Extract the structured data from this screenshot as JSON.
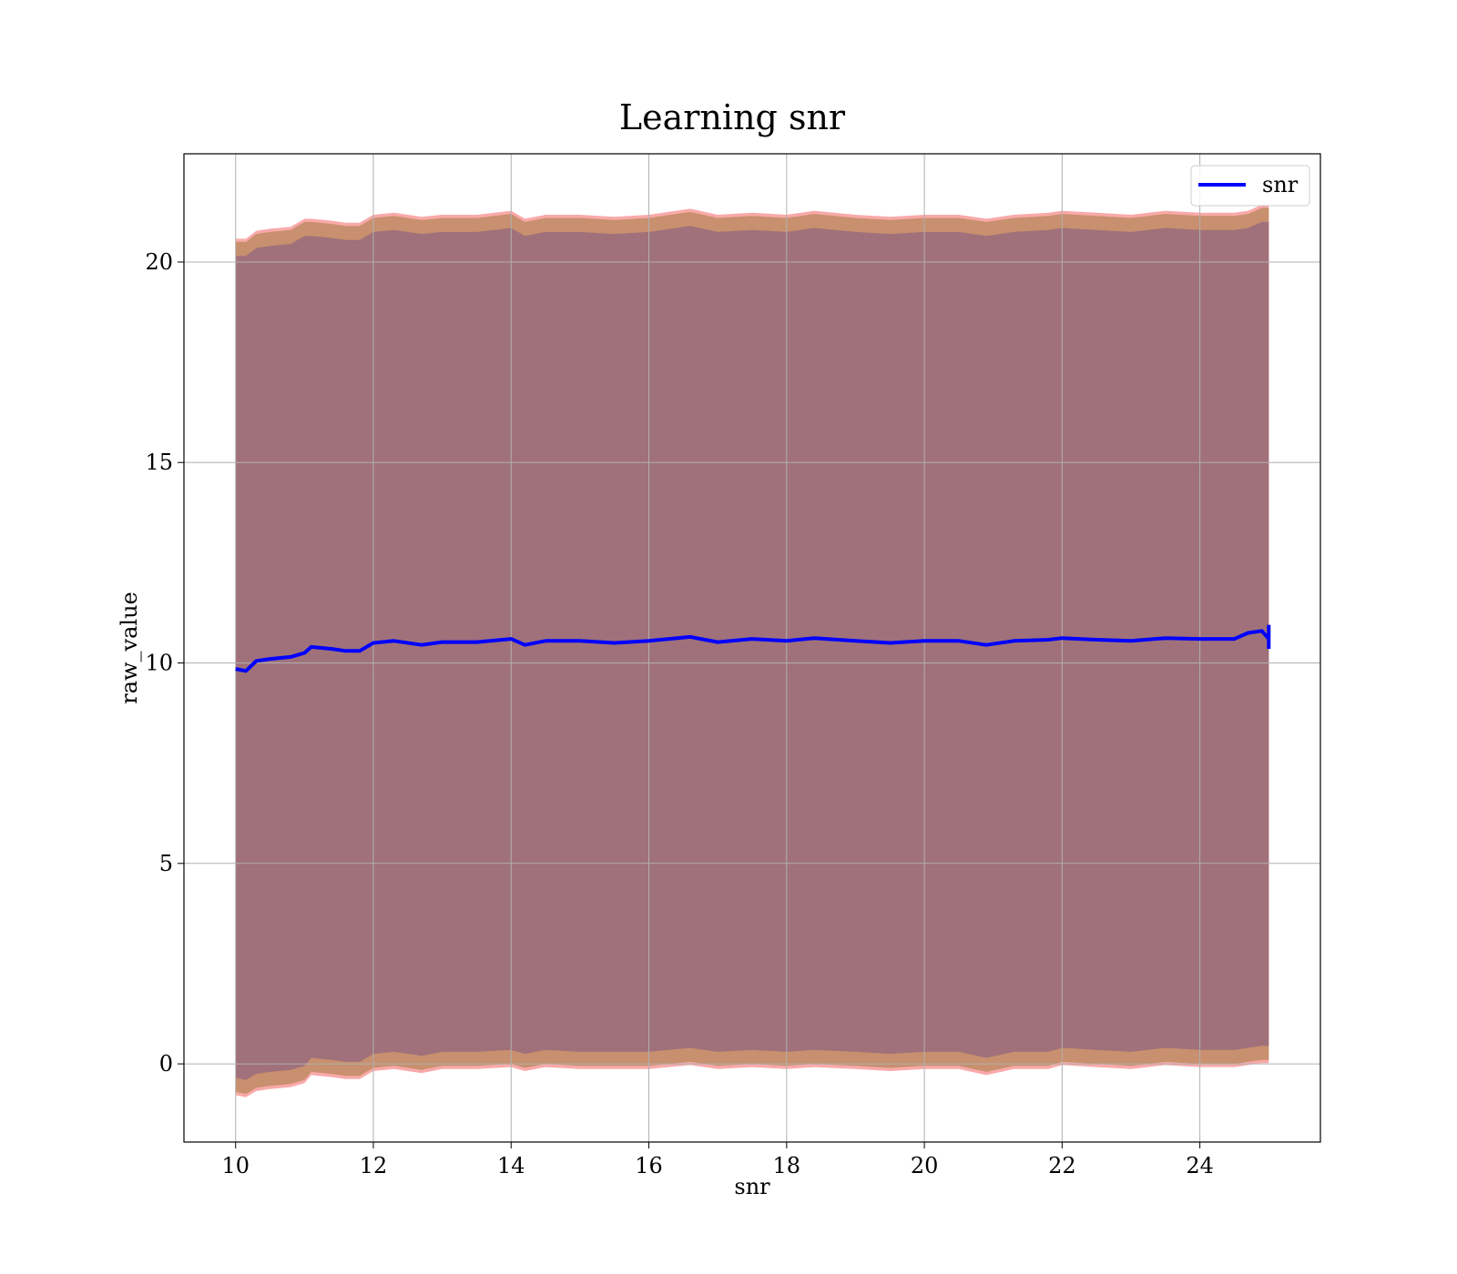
{
  "chart_data": {
    "type": "line",
    "title": "Learning snr",
    "xlabel": "snr",
    "ylabel": "raw_value",
    "xlim": [
      9.25,
      25.75
    ],
    "ylim": [
      -1.95,
      22.7
    ],
    "xticks": [
      10,
      12,
      14,
      16,
      18,
      20,
      22,
      24
    ],
    "yticks": [
      0,
      5,
      10,
      15,
      20
    ],
    "grid": true,
    "legend": {
      "position": "top-right",
      "entries": [
        "snr"
      ]
    },
    "colors": {
      "line": "#0000ff",
      "band_outer": "#f8a0a0",
      "band_mid": "#c8906e",
      "band_inner": "#a0717a",
      "grid": "#b0b0b0"
    },
    "series": [
      {
        "name": "snr",
        "x": [
          10.0,
          10.15,
          10.3,
          10.5,
          10.8,
          11.0,
          11.1,
          11.4,
          11.6,
          11.8,
          12.0,
          12.3,
          12.7,
          13.0,
          13.5,
          14.0,
          14.2,
          14.5,
          15.0,
          15.5,
          16.0,
          16.6,
          17.0,
          17.5,
          18.0,
          18.4,
          19.0,
          19.5,
          20.0,
          20.5,
          20.9,
          21.3,
          21.8,
          22.0,
          22.5,
          23.0,
          23.5,
          24.0,
          24.5,
          24.7,
          24.9,
          25.0
        ],
        "y": [
          9.85,
          9.8,
          10.05,
          10.1,
          10.15,
          10.25,
          10.4,
          10.35,
          10.3,
          10.3,
          10.5,
          10.55,
          10.45,
          10.52,
          10.52,
          10.6,
          10.45,
          10.55,
          10.55,
          10.5,
          10.55,
          10.65,
          10.52,
          10.6,
          10.55,
          10.62,
          10.55,
          10.5,
          10.55,
          10.55,
          10.45,
          10.55,
          10.58,
          10.62,
          10.58,
          10.55,
          10.62,
          10.6,
          10.6,
          10.75,
          10.8,
          10.6
        ],
        "upper": [
          20.5,
          20.5,
          20.7,
          20.75,
          20.8,
          21.0,
          21.0,
          20.95,
          20.9,
          20.9,
          21.1,
          21.15,
          21.05,
          21.1,
          21.1,
          21.2,
          21.0,
          21.1,
          21.1,
          21.05,
          21.1,
          21.25,
          21.1,
          21.15,
          21.1,
          21.2,
          21.1,
          21.05,
          21.1,
          21.1,
          21.0,
          21.1,
          21.15,
          21.2,
          21.15,
          21.1,
          21.2,
          21.15,
          21.15,
          21.2,
          21.35,
          21.35
        ],
        "lower": [
          -0.7,
          -0.75,
          -0.6,
          -0.55,
          -0.5,
          -0.4,
          -0.2,
          -0.25,
          -0.3,
          -0.3,
          -0.1,
          -0.05,
          -0.15,
          -0.05,
          -0.05,
          0.0,
          -0.1,
          0.0,
          -0.05,
          -0.05,
          -0.05,
          0.05,
          -0.05,
          0.0,
          -0.05,
          0.0,
          -0.05,
          -0.1,
          -0.05,
          -0.05,
          -0.2,
          -0.05,
          -0.05,
          0.05,
          0.0,
          -0.05,
          0.05,
          0.0,
          0.0,
          0.05,
          0.1,
          0.1
        ]
      }
    ]
  }
}
